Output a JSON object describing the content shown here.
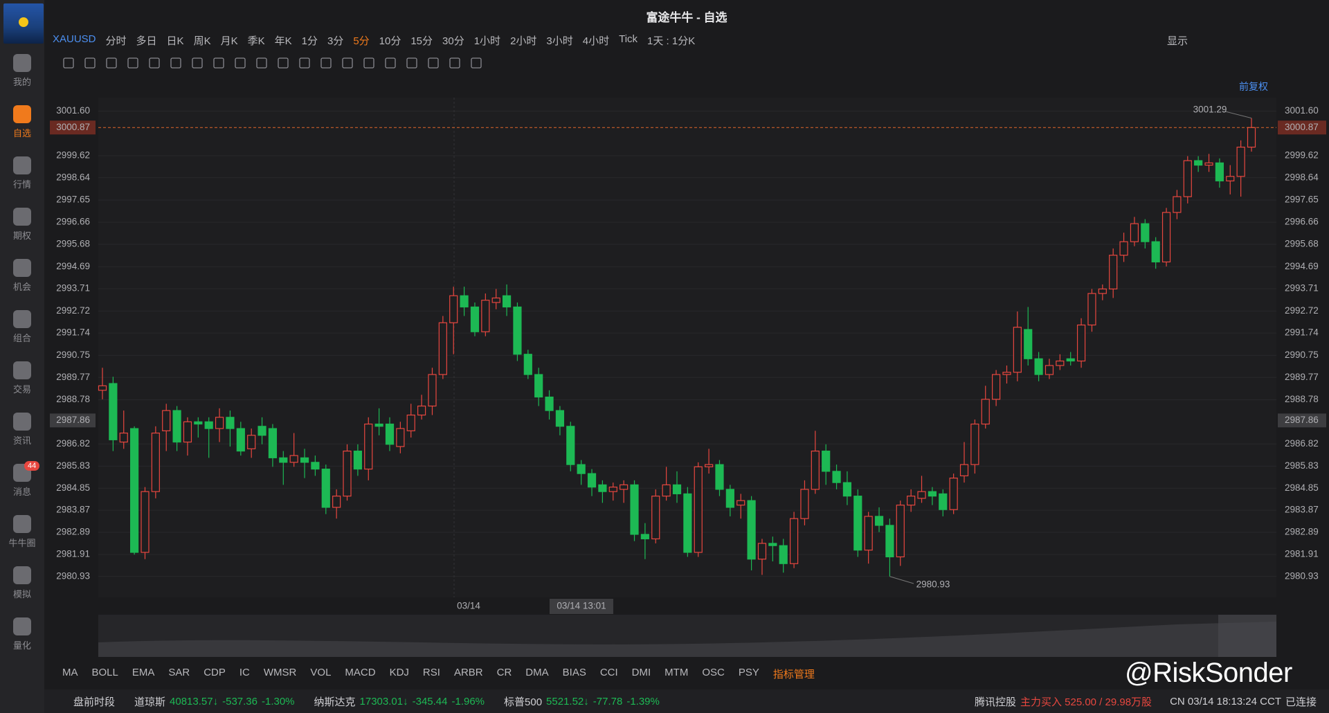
{
  "window": {
    "title": "富途牛牛 - 自选"
  },
  "sidebar": {
    "items": [
      "我的",
      "自选",
      "行情",
      "期权",
      "机会",
      "组合",
      "交易",
      "资讯",
      "消息",
      "牛牛圈",
      "模拟",
      "量化"
    ],
    "active": "自选",
    "badge": "44"
  },
  "toolbar": {
    "symbol": "XAUUSD",
    "periods": [
      "分时",
      "多日",
      "日K",
      "周K",
      "月K",
      "季K",
      "年K",
      "1分",
      "3分",
      "5分",
      "10分",
      "15分",
      "30分",
      "1小时",
      "2小时",
      "3小时",
      "4小时",
      "Tick"
    ],
    "active_period": "5分",
    "range": "1天 : 1分K",
    "display": "显示"
  },
  "adjust": "前复权",
  "chart_data": {
    "type": "candlestick",
    "up_color": "#e8473f",
    "down_color": "#1db954",
    "ylim": [
      2980.0,
      3002.2
    ],
    "yticks": [
      {
        "value": 3001.6,
        "label": "3001.60"
      },
      2999.62,
      2998.64,
      2997.65,
      2996.66,
      2995.68,
      2994.69,
      2993.71,
      2992.72,
      2991.74,
      2990.75,
      2989.77,
      2988.78,
      2986.82,
      2985.83,
      2984.85,
      2983.87,
      2982.89,
      2981.91,
      2980.93
    ],
    "last_price": 3000.87,
    "crosshair_price": 2987.86,
    "crosshair_time": "03/14 13:01",
    "x_labels": [
      "03/14"
    ],
    "high_label": 3001.29,
    "low_label": 2980.93,
    "ohlc": [
      [
        2989.2,
        2990.2,
        2988.8,
        2989.4
      ],
      [
        2989.5,
        2989.8,
        2986.5,
        2987.0
      ],
      [
        2986.9,
        2988.3,
        2986.6,
        2987.3
      ],
      [
        2987.5,
        2987.6,
        2981.9,
        2982.0
      ],
      [
        2982.0,
        2984.9,
        2981.7,
        2984.7
      ],
      [
        2984.7,
        2987.6,
        2984.4,
        2987.3
      ],
      [
        2987.4,
        2988.6,
        2986.5,
        2988.3
      ],
      [
        2988.3,
        2988.5,
        2986.5,
        2986.9
      ],
      [
        2986.9,
        2988.0,
        2986.3,
        2987.8
      ],
      [
        2987.8,
        2988.0,
        2987.1,
        2987.7
      ],
      [
        2987.8,
        2988.0,
        2986.2,
        2987.5
      ],
      [
        2987.5,
        2988.4,
        2986.9,
        2988.0
      ],
      [
        2988.0,
        2988.3,
        2986.7,
        2987.5
      ],
      [
        2987.5,
        2987.8,
        2986.3,
        2986.5
      ],
      [
        2986.6,
        2987.5,
        2986.2,
        2987.2
      ],
      [
        2987.6,
        2988.0,
        2986.8,
        2987.2
      ],
      [
        2987.5,
        2987.7,
        2985.8,
        2986.2
      ],
      [
        2986.2,
        2986.5,
        2985.0,
        2986.0
      ],
      [
        2986.0,
        2987.3,
        2985.8,
        2986.3
      ],
      [
        2986.2,
        2986.6,
        2985.3,
        2986.0
      ],
      [
        2986.0,
        2986.3,
        2985.4,
        2985.7
      ],
      [
        2985.7,
        2985.9,
        2983.7,
        2984.0
      ],
      [
        2984.0,
        2984.8,
        2983.5,
        2984.5
      ],
      [
        2984.5,
        2986.8,
        2984.3,
        2986.5
      ],
      [
        2986.5,
        2986.8,
        2985.4,
        2985.7
      ],
      [
        2985.7,
        2988.0,
        2985.2,
        2987.7
      ],
      [
        2987.7,
        2988.4,
        2987.2,
        2987.6
      ],
      [
        2987.7,
        2988.0,
        2986.5,
        2986.8
      ],
      [
        2986.7,
        2987.8,
        2986.4,
        2987.5
      ],
      [
        2987.4,
        2988.6,
        2987.1,
        2988.1
      ],
      [
        2988.1,
        2989.0,
        2987.9,
        2988.5
      ],
      [
        2988.5,
        2990.2,
        2988.1,
        2989.9
      ],
      [
        2989.9,
        2992.5,
        2989.7,
        2992.2
      ],
      [
        2992.2,
        2993.8,
        2990.8,
        2993.4
      ],
      [
        2993.4,
        2993.8,
        2992.5,
        2992.9
      ],
      [
        2992.9,
        2993.1,
        2991.6,
        2991.8
      ],
      [
        2991.8,
        2993.5,
        2991.6,
        2993.2
      ],
      [
        2993.1,
        2993.7,
        2992.8,
        2993.3
      ],
      [
        2993.4,
        2993.9,
        2992.5,
        2992.9
      ],
      [
        2992.9,
        2993.1,
        2990.5,
        2990.8
      ],
      [
        2990.8,
        2991.0,
        2989.7,
        2989.9
      ],
      [
        2989.9,
        2990.2,
        2988.5,
        2988.9
      ],
      [
        2988.9,
        2989.2,
        2987.9,
        2988.3
      ],
      [
        2988.3,
        2988.5,
        2987.2,
        2987.6
      ],
      [
        2987.6,
        2987.8,
        2985.6,
        2985.9
      ],
      [
        2985.9,
        2986.1,
        2985.0,
        2985.5
      ],
      [
        2985.5,
        2985.7,
        2984.5,
        2984.9
      ],
      [
        2985.0,
        2985.2,
        2984.2,
        2984.7
      ],
      [
        2984.7,
        2985.1,
        2984.3,
        2984.9
      ],
      [
        2984.8,
        2985.2,
        2984.2,
        2985.0
      ],
      [
        2985.0,
        2985.2,
        2982.5,
        2982.8
      ],
      [
        2982.8,
        2983.3,
        2981.7,
        2982.6
      ],
      [
        2982.6,
        2984.8,
        2982.4,
        2984.5
      ],
      [
        2984.5,
        2985.8,
        2984.3,
        2985.0
      ],
      [
        2985.0,
        2985.6,
        2984.2,
        2984.6
      ],
      [
        2984.6,
        2984.9,
        2981.8,
        2982.0
      ],
      [
        2982.0,
        2986.0,
        2981.8,
        2985.8
      ],
      [
        2985.8,
        2986.6,
        2985.5,
        2985.9
      ],
      [
        2985.9,
        2986.1,
        2984.5,
        2984.8
      ],
      [
        2984.8,
        2985.0,
        2983.6,
        2984.0
      ],
      [
        2984.1,
        2984.6,
        2983.5,
        2984.3
      ],
      [
        2984.3,
        2984.5,
        2981.2,
        2981.7
      ],
      [
        2981.7,
        2982.6,
        2981.0,
        2982.4
      ],
      [
        2982.4,
        2982.7,
        2981.6,
        2982.3
      ],
      [
        2982.3,
        2982.6,
        2981.1,
        2981.5
      ],
      [
        2981.5,
        2983.8,
        2981.3,
        2983.5
      ],
      [
        2983.5,
        2985.2,
        2983.2,
        2984.8
      ],
      [
        2984.8,
        2987.4,
        2984.6,
        2986.5
      ],
      [
        2986.5,
        2986.8,
        2985.0,
        2985.6
      ],
      [
        2985.6,
        2985.9,
        2984.8,
        2985.1
      ],
      [
        2985.1,
        2985.6,
        2984.1,
        2984.5
      ],
      [
        2984.5,
        2984.8,
        2981.8,
        2982.1
      ],
      [
        2982.1,
        2983.8,
        2981.5,
        2983.6
      ],
      [
        2983.6,
        2984.0,
        2982.9,
        2983.2
      ],
      [
        2983.2,
        2983.5,
        2980.93,
        2981.8
      ],
      [
        2981.8,
        2984.3,
        2981.4,
        2984.1
      ],
      [
        2984.1,
        2984.8,
        2983.8,
        2984.5
      ],
      [
        2984.4,
        2985.4,
        2984.2,
        2984.7
      ],
      [
        2984.7,
        2984.9,
        2984.1,
        2984.5
      ],
      [
        2984.6,
        2984.8,
        2983.6,
        2983.9
      ],
      [
        2983.9,
        2985.5,
        2983.7,
        2985.3
      ],
      [
        2985.4,
        2986.9,
        2985.1,
        2985.9
      ],
      [
        2985.9,
        2987.9,
        2985.5,
        2987.7
      ],
      [
        2987.7,
        2989.4,
        2987.5,
        2988.8
      ],
      [
        2988.8,
        2990.1,
        2988.5,
        2989.9
      ],
      [
        2989.9,
        2990.3,
        2989.5,
        2990.0
      ],
      [
        2990.0,
        2992.7,
        2989.6,
        2992.0
      ],
      [
        2991.9,
        2992.9,
        2990.3,
        2990.6
      ],
      [
        2990.6,
        2990.9,
        2989.6,
        2989.9
      ],
      [
        2989.9,
        2990.6,
        2989.7,
        2990.3
      ],
      [
        2990.3,
        2990.8,
        2990.1,
        2990.5
      ],
      [
        2990.6,
        2990.9,
        2990.3,
        2990.5
      ],
      [
        2990.5,
        2992.4,
        2990.2,
        2992.1
      ],
      [
        2992.1,
        2993.7,
        2991.8,
        2993.5
      ],
      [
        2993.5,
        2993.9,
        2993.2,
        2993.7
      ],
      [
        2993.7,
        2995.5,
        2993.3,
        2995.2
      ],
      [
        2995.2,
        2996.2,
        2994.9,
        2995.8
      ],
      [
        2995.8,
        2996.9,
        2995.6,
        2996.6
      ],
      [
        2996.6,
        2996.8,
        2995.5,
        2995.8
      ],
      [
        2995.8,
        2996.0,
        2994.6,
        2994.9
      ],
      [
        2994.9,
        2997.3,
        2994.7,
        2997.1
      ],
      [
        2997.1,
        2998.1,
        2996.8,
        2997.8
      ],
      [
        2997.8,
        2999.6,
        2997.5,
        2999.4
      ],
      [
        2999.4,
        2999.6,
        2998.9,
        2999.2
      ],
      [
        2999.2,
        2999.7,
        2998.9,
        2999.3
      ],
      [
        2999.3,
        2999.5,
        2998.2,
        2998.5
      ],
      [
        2998.5,
        2999.2,
        2997.9,
        2998.7
      ],
      [
        2998.7,
        3000.3,
        2997.8,
        3000.0
      ],
      [
        3000.0,
        3001.29,
        2999.8,
        3000.87
      ]
    ]
  },
  "indicators": {
    "items": [
      "MA",
      "BOLL",
      "EMA",
      "SAR",
      "CDP",
      "IC",
      "WMSR",
      "VOL",
      "MACD",
      "KDJ",
      "RSI",
      "ARBR",
      "CR",
      "DMA",
      "BIAS",
      "CCI",
      "DMI",
      "MTM",
      "OSC",
      "PSY"
    ],
    "manage": "指标管理"
  },
  "status_bar": {
    "session": "盘前时段",
    "markets": [
      {
        "name": "道琼斯",
        "price": "40813.57↓",
        "change": "-537.36",
        "pct": "-1.30%"
      },
      {
        "name": "纳斯达克",
        "price": "17303.01↓",
        "change": "-345.44",
        "pct": "-1.96%"
      },
      {
        "name": "标普500",
        "price": "5521.52↓",
        "change": "-77.78",
        "pct": "-1.39%"
      }
    ],
    "stock": "腾讯控股",
    "flow": "主力买入 525.00 / 29.98万股",
    "clock": "CN 03/14 18:13:24 CCT",
    "connection": "已连接"
  },
  "watermark": "@RiskSonder"
}
